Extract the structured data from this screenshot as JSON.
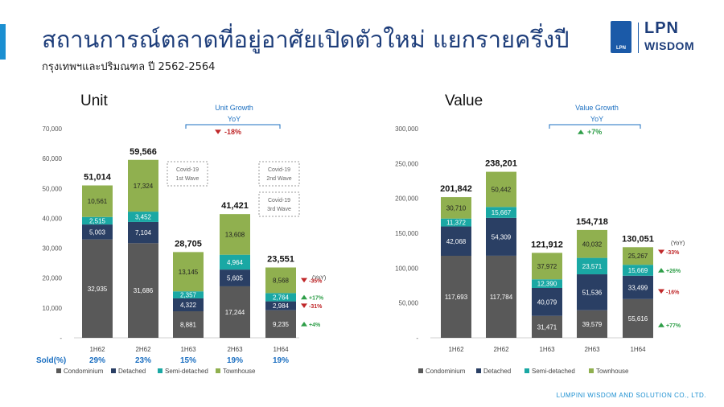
{
  "header": {
    "title": "สถานการณ์ตลาดที่อยู่อาศัยเปิดตัวใหม่ แยกรายครึ่งปี",
    "subtitle": "กรุงเทพฯและปริมณฑล ปี 2562-2564"
  },
  "logo": {
    "badge_text": "LPN",
    "top": "LPN",
    "bottom": "WISDOM"
  },
  "footer": "LUMPINI WISDOM AND SOLUTION CO., LTD.",
  "colors": {
    "condominium": "#595959",
    "detached": "#2a3f64",
    "semi_detached": "#1aa8a4",
    "townhouse": "#90b04f",
    "up": "#2e9e48",
    "down": "#c0282a"
  },
  "chart_data": [
    {
      "type": "bar",
      "stacked": true,
      "title": "Unit",
      "ylim": [
        0,
        70000
      ],
      "yticks": [
        "-",
        "10,000",
        "20,000",
        "30,000",
        "40,000",
        "50,000",
        "60,000",
        "70,000"
      ],
      "categories": [
        "1H62",
        "2H62",
        "1H63",
        "2H63",
        "1H64"
      ],
      "series": [
        {
          "name": "Condominium",
          "values": [
            32935,
            31686,
            8881,
            17244,
            9235
          ],
          "labels": [
            "32,935",
            "31,686",
            "8,881",
            "17,244",
            "9,235"
          ]
        },
        {
          "name": "Detached",
          "values": [
            5003,
            7104,
            4322,
            5605,
            2984
          ],
          "labels": [
            "5,003",
            "7,104",
            "4,322",
            "5,605",
            "2,984"
          ]
        },
        {
          "name": "Semi-detached",
          "values": [
            2515,
            3452,
            2357,
            4964,
            2764
          ],
          "labels": [
            "2,515",
            "3,452",
            "2,357",
            "4,964",
            "2,764"
          ]
        },
        {
          "name": "Townhouse",
          "values": [
            10561,
            17324,
            13145,
            13608,
            8568
          ],
          "labels": [
            "10,561",
            "17,324",
            "13,145",
            "13,608",
            "8,568"
          ]
        }
      ],
      "totals": [
        "51,014",
        "59,566",
        "28,705",
        "41,421",
        "23,551"
      ],
      "sold_label": "Sold(%)",
      "sold": [
        "29%",
        "23%",
        "15%",
        "19%",
        "19%"
      ],
      "growth_title": "Unit Growth",
      "growth_sub": "YoY",
      "growth_total": "-18%",
      "growth_total_dir": "down",
      "yoy_label": "(YoY)",
      "yoy": [
        {
          "series": "Townhouse",
          "text": "-35%",
          "dir": "down"
        },
        {
          "series": "Semi-detached",
          "text": "+17%",
          "dir": "up"
        },
        {
          "series": "Detached",
          "text": "-31%",
          "dir": "down"
        },
        {
          "series": "Condominium",
          "text": "+4%",
          "dir": "up"
        }
      ],
      "annotations": [
        {
          "line1": "Covid-19",
          "line2": "1st Wave"
        },
        {
          "line1": "Covid-19",
          "line2": "2nd Wave"
        },
        {
          "line1": "Covid-19",
          "line2": "3rd Wave"
        }
      ],
      "legend": [
        "Condominium",
        "Detached",
        "Semi-detached",
        "Townhouse"
      ]
    },
    {
      "type": "bar",
      "stacked": true,
      "title": "Value",
      "ylim": [
        0,
        300000
      ],
      "yticks": [
        "-",
        "50,000",
        "100,000",
        "150,000",
        "200,000",
        "250,000",
        "300,000"
      ],
      "categories": [
        "1H62",
        "2H62",
        "1H63",
        "2H63",
        "1H64"
      ],
      "series": [
        {
          "name": "Condominium",
          "values": [
            117693,
            117784,
            31471,
            39579,
            55616
          ],
          "labels": [
            "117,693",
            "117,784",
            "31,471",
            "39,579",
            "55,616"
          ]
        },
        {
          "name": "Detached",
          "values": [
            42068,
            54309,
            40079,
            51536,
            33499
          ],
          "labels": [
            "42,068",
            "54,309",
            "40,079",
            "51,536",
            "33,499"
          ]
        },
        {
          "name": "Semi-detached",
          "values": [
            11372,
            15667,
            12390,
            23571,
            15669
          ],
          "labels": [
            "11,372",
            "15,667",
            "12,390",
            "23,571",
            "15,669"
          ]
        },
        {
          "name": "Townhouse",
          "values": [
            30710,
            50442,
            37972,
            40032,
            25267
          ],
          "labels": [
            "30,710",
            "50,442",
            "37,972",
            "40,032",
            "25,267"
          ]
        }
      ],
      "totals": [
        "201,842",
        "238,201",
        "121,912",
        "154,718",
        "130,051"
      ],
      "growth_title": "Value Growth",
      "growth_sub": "YoY",
      "growth_total": "+7%",
      "growth_total_dir": "up",
      "yoy_label": "(YoY)",
      "yoy": [
        {
          "series": "Townhouse",
          "text": "-33%",
          "dir": "down"
        },
        {
          "series": "Semi-detached",
          "text": "+26%",
          "dir": "up"
        },
        {
          "series": "Detached",
          "text": "-16%",
          "dir": "down"
        },
        {
          "series": "Condominium",
          "text": "+77%",
          "dir": "up"
        }
      ],
      "legend": [
        "Condominium",
        "Detached",
        "Semi-detached",
        "Townhouse"
      ]
    }
  ]
}
